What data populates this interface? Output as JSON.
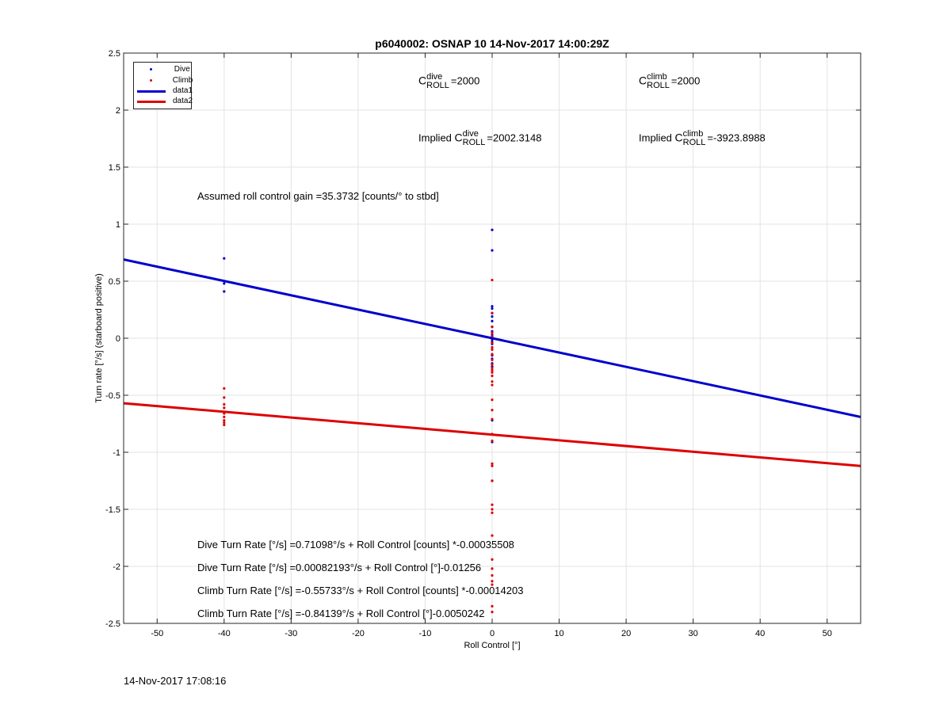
{
  "chart_data": {
    "type": "scatter",
    "title": "p6040002: OSNAP 10 14-Nov-2017 14:00:29Z",
    "xlabel": "Roll Control [°]",
    "ylabel": "Turn rate [°/s] (starboard positive)",
    "xlim": [
      -55,
      55
    ],
    "ylim": [
      -2.5,
      2.5
    ],
    "xticks": [
      -50,
      -40,
      -30,
      -20,
      -10,
      0,
      10,
      20,
      30,
      40,
      50
    ],
    "yticks": [
      -2.5,
      -2,
      -1.5,
      -1,
      -0.5,
      0,
      0.5,
      1,
      1.5,
      2,
      2.5
    ],
    "ytick_labels": [
      "-2.5",
      "-2",
      "-1.5",
      "-1",
      "-0.5",
      "0",
      "0.5",
      "1",
      "1.5",
      "2",
      "2.5"
    ],
    "grid": true,
    "legend_position": "top-left",
    "series": [
      {
        "name": "Dive",
        "kind": "points",
        "color": "#0000cc",
        "points": [
          [
            -40,
            0.7
          ],
          [
            -40,
            0.48
          ],
          [
            -40,
            0.41
          ],
          [
            0,
            0.95
          ],
          [
            0,
            0.77
          ],
          [
            0,
            0.28
          ],
          [
            0,
            0.26
          ],
          [
            0,
            0.22
          ],
          [
            0,
            0.19
          ],
          [
            0,
            0.15
          ],
          [
            0,
            0.1
          ],
          [
            0,
            0.06
          ],
          [
            0,
            0.03
          ],
          [
            0,
            0.01
          ],
          [
            0,
            -0.01
          ],
          [
            0,
            -0.03
          ],
          [
            0,
            -0.05
          ],
          [
            0,
            -0.15
          ],
          [
            0,
            -0.18
          ],
          [
            0,
            -0.22
          ],
          [
            0,
            -0.25
          ],
          [
            0,
            -0.72
          ],
          [
            0,
            -0.91
          ],
          [
            0,
            -1.25
          ]
        ]
      },
      {
        "name": "Climb",
        "kind": "points",
        "color": "#dd0000",
        "points": [
          [
            -40,
            -0.44
          ],
          [
            -40,
            -0.52
          ],
          [
            -40,
            -0.58
          ],
          [
            -40,
            -0.61
          ],
          [
            -40,
            -0.66
          ],
          [
            -40,
            -0.69
          ],
          [
            -40,
            -0.72
          ],
          [
            -40,
            -0.74
          ],
          [
            -40,
            -0.76
          ],
          [
            0,
            0.51
          ],
          [
            0,
            0.22
          ],
          [
            0,
            0.1
          ],
          [
            0,
            0.05
          ],
          [
            0,
            0.02
          ],
          [
            0,
            -0.04
          ],
          [
            0,
            -0.08
          ],
          [
            0,
            -0.1
          ],
          [
            0,
            -0.14
          ],
          [
            0,
            -0.19
          ],
          [
            0,
            -0.23
          ],
          [
            0,
            -0.26
          ],
          [
            0,
            -0.28
          ],
          [
            0,
            -0.3
          ],
          [
            0,
            -0.33
          ],
          [
            0,
            -0.38
          ],
          [
            0,
            -0.41
          ],
          [
            0,
            -0.54
          ],
          [
            0,
            -0.63
          ],
          [
            0,
            -0.71
          ],
          [
            0,
            -0.84
          ],
          [
            0,
            -0.9
          ],
          [
            0,
            -1.1
          ],
          [
            0,
            -1.12
          ],
          [
            0,
            -1.25
          ],
          [
            0,
            -1.46
          ],
          [
            0,
            -1.5
          ],
          [
            0,
            -1.53
          ],
          [
            0,
            -1.73
          ],
          [
            0,
            -1.94
          ],
          [
            0,
            -2.02
          ],
          [
            0,
            -2.08
          ],
          [
            0,
            -2.13
          ],
          [
            0,
            -2.16
          ],
          [
            0,
            -2.35
          ],
          [
            0,
            -2.4
          ]
        ]
      },
      {
        "name": "data1",
        "kind": "line",
        "color": "#0000cc",
        "points": [
          [
            -55,
            0.69
          ],
          [
            55,
            -0.69
          ]
        ]
      },
      {
        "name": "data2",
        "kind": "line",
        "color": "#dd0000",
        "points": [
          [
            -55,
            -0.57
          ],
          [
            55,
            -1.12
          ]
        ]
      }
    ],
    "annotations": {
      "c_letter": "C",
      "roll_sub": "ROLL",
      "dive_sup": "dive",
      "climb_sup": "climb",
      "c_dive_value": "=2000",
      "c_climb_value": "=2000",
      "implied_prefix": "Implied ",
      "implied_dive_value": "=2002.3148",
      "implied_climb_value": "=-3923.8988",
      "roll_gain": "Assumed roll control gain =35.3732 [counts/° to stbd]",
      "fit_lines": [
        "Dive Turn Rate [°/s] =0.71098°/s + Roll Control [counts] *-0.00035508",
        "Dive Turn Rate [°/s] =0.00082193°/s + Roll Control [°]-0.01256",
        "Climb Turn Rate [°/s] =-0.55733°/s + Roll Control [counts] *-0.00014203",
        "Climb Turn Rate [°/s] =-0.84139°/s + Roll Control [°]-0.0050242"
      ]
    }
  },
  "footer_timestamp": "14-Nov-2017 17:08:16"
}
